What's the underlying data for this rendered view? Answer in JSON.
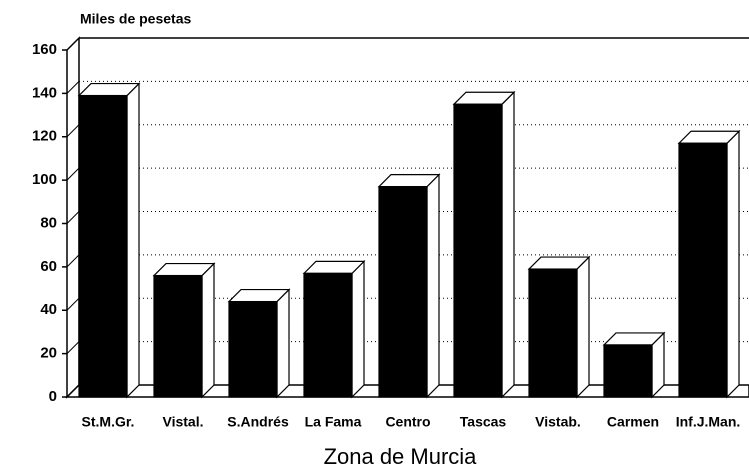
{
  "chart_data": {
    "type": "bar3d",
    "ylabel": "Miles de pesetas",
    "xlabel": "Zona de Murcia",
    "categories": [
      "St.M.Gr.",
      "Vistal.",
      "S.Andrés",
      "La Fama",
      "Centro",
      "Tascas",
      "Vistab.",
      "Carmen",
      "Inf.J.Man."
    ],
    "values": [
      139,
      56,
      44,
      57,
      97,
      135,
      59,
      24,
      117
    ],
    "color": "#000000",
    "ylim": [
      0,
      160
    ],
    "yticks": [
      0,
      20,
      40,
      60,
      80,
      100,
      120,
      140,
      160
    ],
    "grid": true
  }
}
